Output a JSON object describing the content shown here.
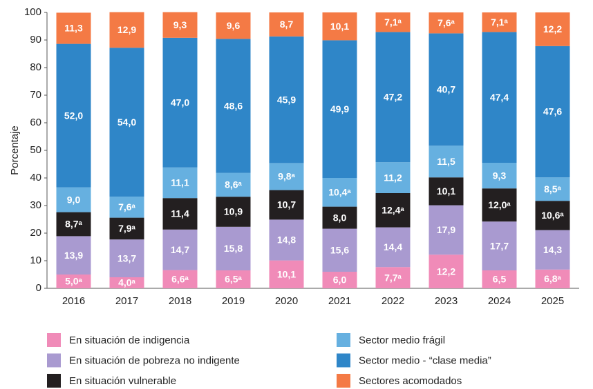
{
  "chart_data": {
    "type": "stacked_bar",
    "y_label": "Porcentaje",
    "categories": [
      "2016",
      "2017",
      "2018",
      "2019",
      "2020",
      "2021",
      "2022",
      "2023",
      "2024",
      "2025"
    ],
    "ylim": [
      0,
      100
    ],
    "yticks": [
      0,
      10,
      20,
      30,
      40,
      50,
      60,
      70,
      80,
      90,
      100
    ],
    "series": [
      {
        "name": "En situación de indigencia",
        "color": "#f08bb8",
        "values": [
          5.0,
          4.0,
          6.6,
          6.5,
          10.1,
          6.0,
          7.7,
          12.2,
          6.5,
          6.8
        ],
        "value_labels": [
          "5,0ᵃ",
          "4,0ᵃ",
          "6,6ᵃ",
          "6,5ᵃ",
          "10,1",
          "6,0",
          "7,7ᵃ",
          "12,2",
          "6,5",
          "6,8ᵃ"
        ]
      },
      {
        "name": "En situación de pobreza no indigente",
        "color": "#a99ad0",
        "values": [
          13.9,
          13.7,
          14.7,
          15.8,
          14.8,
          15.6,
          14.4,
          17.9,
          17.7,
          14.3
        ],
        "value_labels": [
          "13,9",
          "13,7",
          "14,7",
          "15,8",
          "14,8",
          "15,6",
          "14,4",
          "17,9",
          "17,7",
          "14,3"
        ]
      },
      {
        "name": "En situación vulnerable",
        "color": "#231f20",
        "values": [
          8.7,
          7.9,
          11.4,
          10.9,
          10.7,
          8.0,
          12.4,
          10.1,
          12.0,
          10.6
        ],
        "value_labels": [
          "8,7ᵃ",
          "7,9ᵃ",
          "11,4",
          "10,9",
          "10,7",
          "8,0",
          "12,4ᵃ",
          "10,1",
          "12,0ᵃ",
          "10,6ᵃ"
        ]
      },
      {
        "name": "Sector medio frágil",
        "color": "#66b0e0",
        "values": [
          9.0,
          7.6,
          11.1,
          8.6,
          9.8,
          10.4,
          11.2,
          11.5,
          9.3,
          8.5
        ],
        "value_labels": [
          "9,0",
          "7,6ᵃ",
          "11,1",
          "8,6ᵃ",
          "9,8ᵃ",
          "10,4ᵃ",
          "11,2",
          "11,5",
          "9,3",
          "8,5ᵃ"
        ]
      },
      {
        "name": "Sector medio - “clase media”",
        "color": "#2f86c8",
        "values": [
          52.0,
          54.0,
          47.0,
          48.6,
          45.9,
          49.9,
          47.2,
          40.7,
          47.4,
          47.6
        ],
        "value_labels": [
          "52,0",
          "54,0",
          "47,0",
          "48,6",
          "45,9",
          "49,9",
          "47,2",
          "40,7",
          "47,4",
          "47,6"
        ]
      },
      {
        "name": "Sectores acomodados",
        "color": "#f47a45",
        "values": [
          11.3,
          12.9,
          9.3,
          9.6,
          8.7,
          10.1,
          7.1,
          7.6,
          7.1,
          12.2
        ],
        "value_labels": [
          "11,3",
          "12,9",
          "9,3",
          "9,6",
          "8,7",
          "10,1",
          "7,1ᵃ",
          "7,6ᵃ",
          "7,1ᵃ",
          "12,2"
        ]
      }
    ]
  }
}
